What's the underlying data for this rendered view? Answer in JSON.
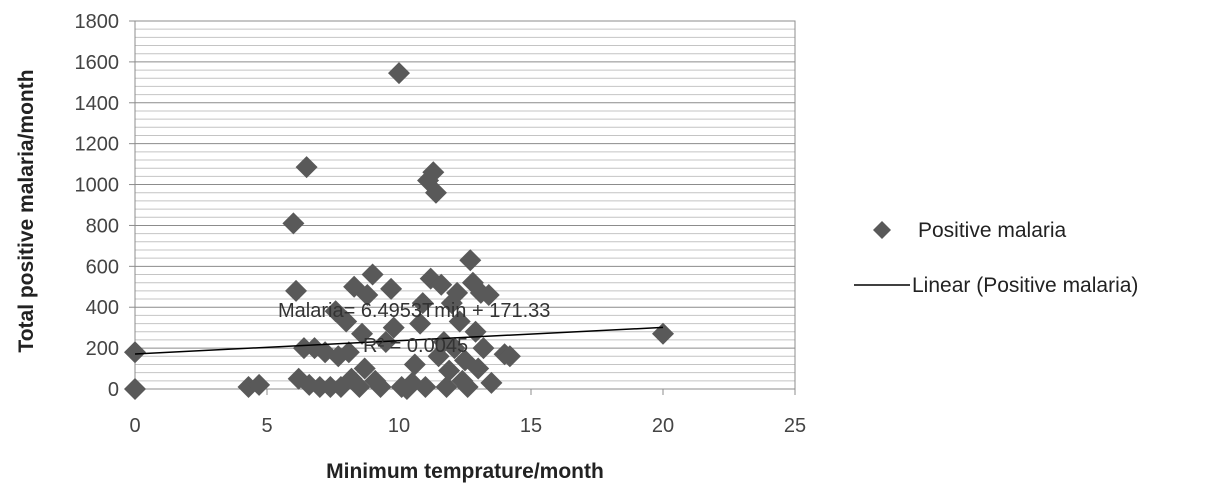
{
  "chart_data": {
    "type": "scatter",
    "xlabel": "Minimum temprature/month",
    "ylabel": "Total positive malaria/month",
    "xlim": [
      0,
      25
    ],
    "ylim": [
      0,
      1800
    ],
    "x_ticks": [
      "0",
      "5",
      "10",
      "15",
      "20",
      "25"
    ],
    "y_ticks": [
      "0",
      "200",
      "400",
      "600",
      "800",
      "1000",
      "1200",
      "1400",
      "1600",
      "1800"
    ],
    "grid": "horizontal",
    "legend_position": "right",
    "legend": {
      "series_label": "Positive malaria",
      "trend_label": "Linear (Positive malaria)"
    },
    "series": [
      {
        "name": "Positive malaria",
        "marker": "diamond",
        "color": "#595959",
        "points": [
          [
            0,
            180
          ],
          [
            0,
            0
          ],
          [
            4.3,
            10
          ],
          [
            4.7,
            20
          ],
          [
            6,
            810
          ],
          [
            6.1,
            480
          ],
          [
            6.2,
            50
          ],
          [
            6.4,
            200
          ],
          [
            6.5,
            1085
          ],
          [
            6.6,
            20
          ],
          [
            6.8,
            200
          ],
          [
            7,
            10
          ],
          [
            7.2,
            180
          ],
          [
            7.4,
            10
          ],
          [
            7.6,
            380
          ],
          [
            7.7,
            160
          ],
          [
            7.8,
            10
          ],
          [
            8,
            330
          ],
          [
            8.1,
            180
          ],
          [
            8.2,
            50
          ],
          [
            8.3,
            500
          ],
          [
            8.5,
            10
          ],
          [
            8.6,
            270
          ],
          [
            8.7,
            100
          ],
          [
            8.8,
            460
          ],
          [
            9,
            560
          ],
          [
            9.1,
            40
          ],
          [
            9.3,
            10
          ],
          [
            9.5,
            230
          ],
          [
            9.7,
            490
          ],
          [
            9.8,
            300
          ],
          [
            10,
            1545
          ],
          [
            10.1,
            10
          ],
          [
            10.3,
            0
          ],
          [
            10.5,
            30
          ],
          [
            10.6,
            120
          ],
          [
            10.8,
            320
          ],
          [
            10.9,
            420
          ],
          [
            11,
            10
          ],
          [
            11.1,
            1020
          ],
          [
            11.2,
            540
          ],
          [
            11.3,
            1060
          ],
          [
            11.4,
            960
          ],
          [
            11.5,
            160
          ],
          [
            11.6,
            510
          ],
          [
            11.7,
            230
          ],
          [
            11.8,
            10
          ],
          [
            11.9,
            90
          ],
          [
            12,
            420
          ],
          [
            12.1,
            200
          ],
          [
            12.2,
            470
          ],
          [
            12.3,
            330
          ],
          [
            12.4,
            40
          ],
          [
            12.5,
            140
          ],
          [
            12.6,
            10
          ],
          [
            12.7,
            630
          ],
          [
            12.8,
            520
          ],
          [
            12.9,
            280
          ],
          [
            13,
            100
          ],
          [
            13.1,
            470
          ],
          [
            13.2,
            200
          ],
          [
            13.4,
            460
          ],
          [
            13.5,
            30
          ],
          [
            14,
            170
          ],
          [
            14.2,
            160
          ],
          [
            20,
            270
          ]
        ]
      }
    ],
    "trendline": {
      "type": "linear",
      "slope": 6.4953,
      "intercept": 171.33,
      "x_range": [
        0,
        20
      ],
      "color": "#000000"
    },
    "annotations": {
      "equation": "Malaria= 6.4953Tmin  + 171.33",
      "r_squared": "R² = 0.0045"
    }
  }
}
